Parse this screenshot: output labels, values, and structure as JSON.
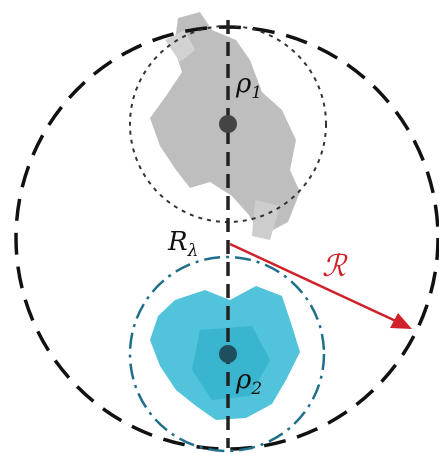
{
  "labels": {
    "rho1": {
      "text": "ρ",
      "subscript": "1"
    },
    "r_lambda": {
      "text": "R",
      "subscript": "λ"
    },
    "radius": {
      "text": "ℛ"
    },
    "rho2": {
      "text": "ρ",
      "subscript": "2"
    }
  }
}
